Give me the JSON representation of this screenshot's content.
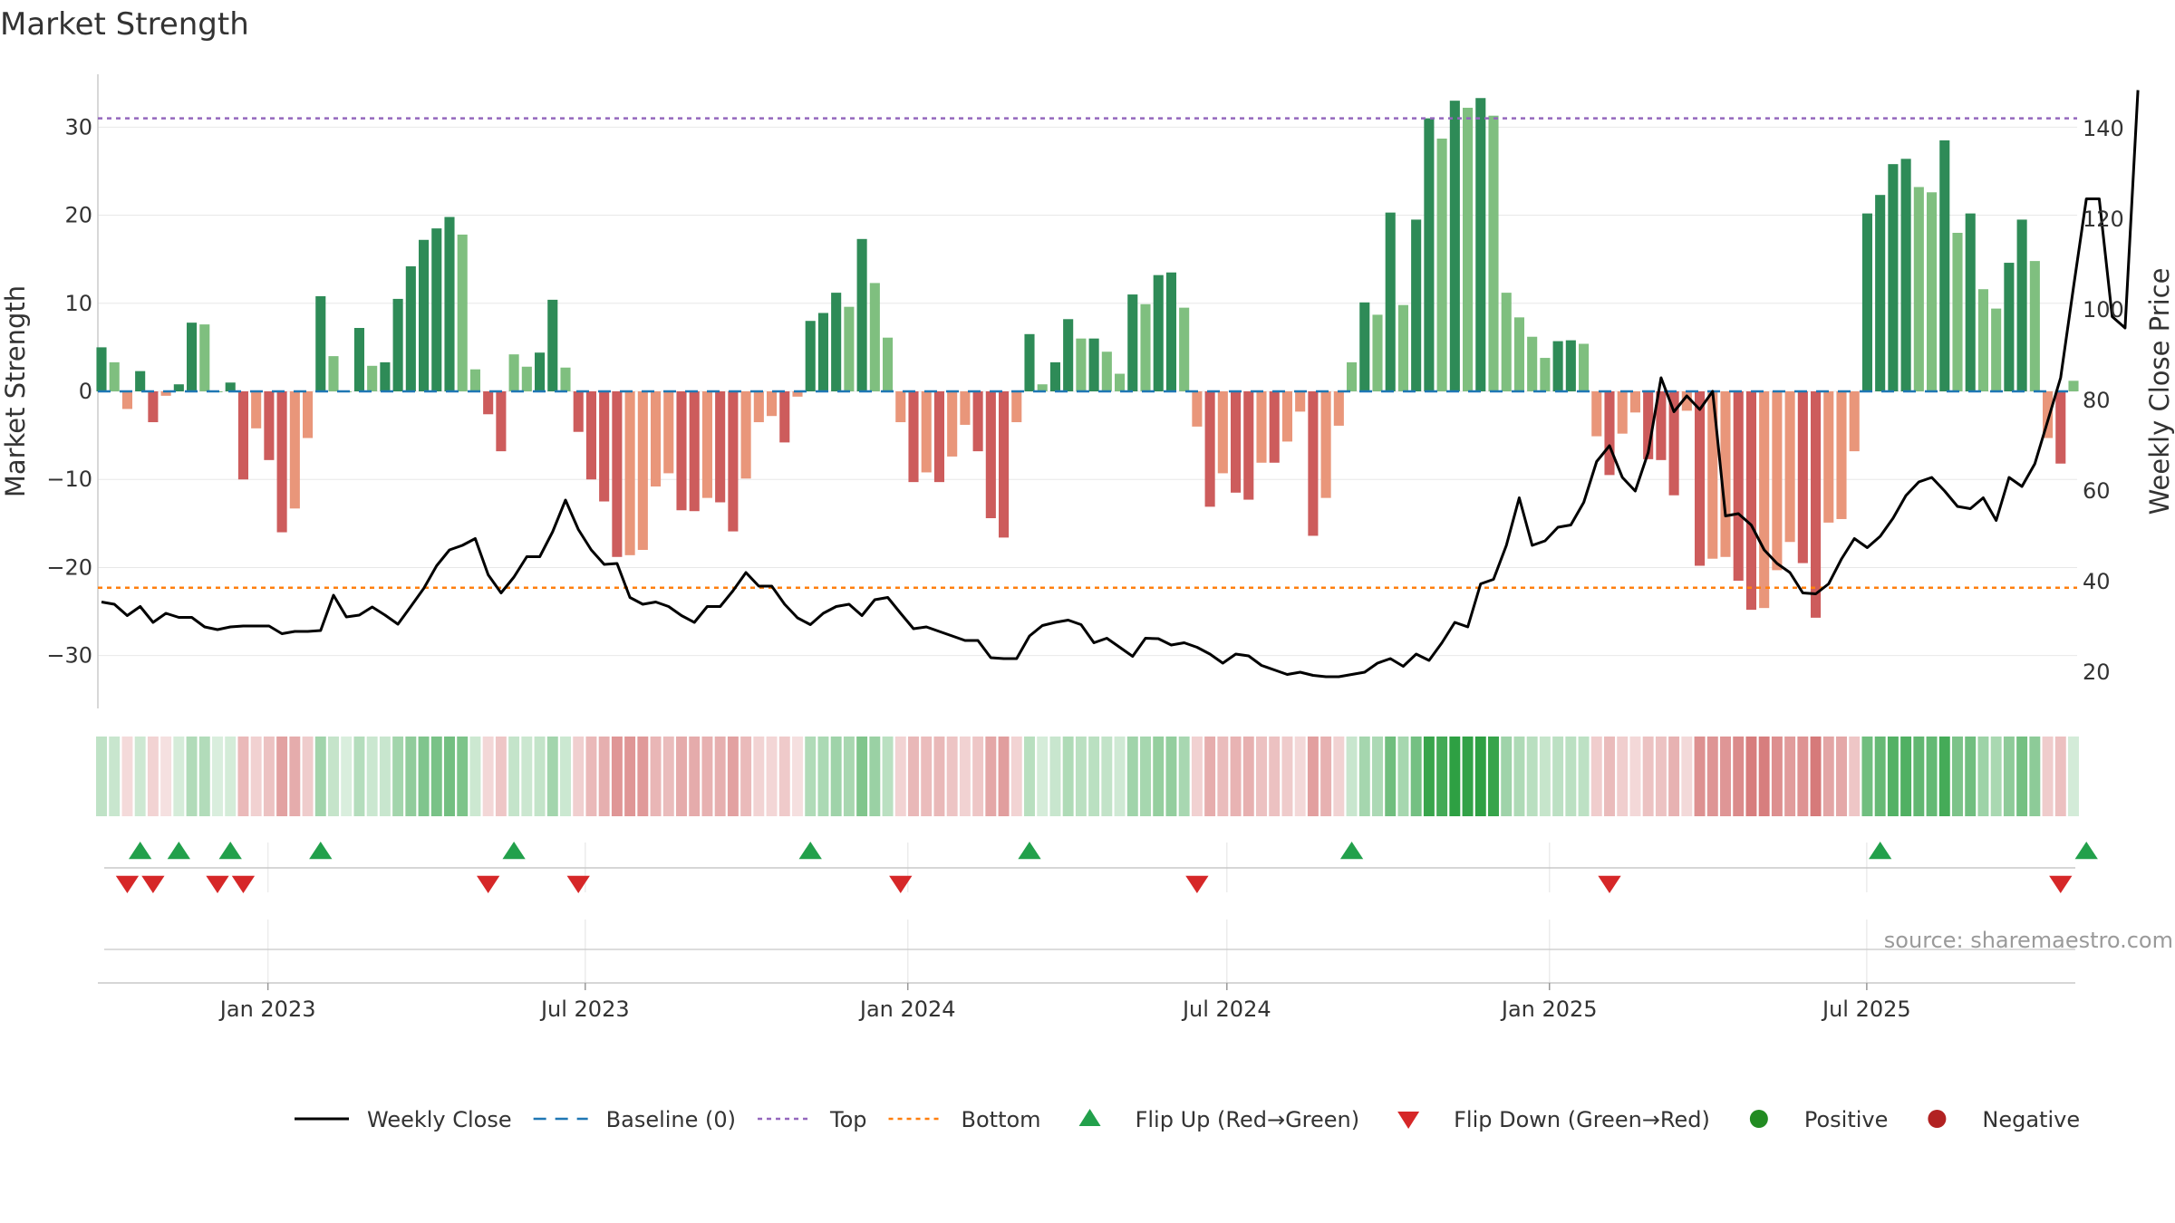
{
  "chart_data": {
    "type": "bar",
    "title": "Market Strength",
    "ylabel_left": "Market Strength",
    "ylabel_right": "Weekly Close Price",
    "ylim_left": [
      -36,
      36
    ],
    "ylim_right": [
      12,
      152
    ],
    "yticks_left": [
      30,
      20,
      10,
      0,
      -10,
      -20,
      -30
    ],
    "ytick_labels_left": [
      "30",
      "20",
      "10",
      "0",
      "−10",
      "−20",
      "−30"
    ],
    "yticks_right": [
      140,
      120,
      100,
      80,
      60,
      40,
      20
    ],
    "ytick_labels_right": [
      "140",
      "120",
      "100",
      "80",
      "60",
      "40",
      "20"
    ],
    "top_level": 31,
    "bottom_level": -22.3,
    "x_start": "2022-09-26",
    "x_end": "2025-10-29",
    "x_ticks": [
      {
        "date": "2023-01-01",
        "label": "Jan 2023"
      },
      {
        "date": "2023-07-01",
        "label": "Jul 2023"
      },
      {
        "date": "2024-01-01",
        "label": "Jan 2024"
      },
      {
        "date": "2024-07-01",
        "label": "Jul 2024"
      },
      {
        "date": "2025-01-01",
        "label": "Jan 2025"
      },
      {
        "date": "2025-07-01",
        "label": "Jul 2025"
      }
    ],
    "strength": [
      5,
      3.3,
      -2,
      2.3,
      -3.5,
      -0.5,
      0.8,
      7.8,
      7.6,
      0,
      1,
      -10,
      -4.2,
      -7.8,
      -16,
      -13.3,
      -5.3,
      10.8,
      4,
      0,
      7.2,
      2.9,
      3.3,
      10.5,
      14.2,
      17.2,
      18.5,
      19.8,
      17.8,
      2.5,
      -2.6,
      -6.8,
      4.2,
      2.8,
      4.4,
      10.4,
      2.7,
      -4.6,
      -10,
      -12.5,
      -18.8,
      -18.6,
      -18,
      -10.8,
      -9.3,
      -13.5,
      -13.6,
      -12.1,
      -12.6,
      -15.9,
      -9.9,
      -3.5,
      -2.8,
      -5.8,
      -0.6,
      8,
      8.9,
      11.2,
      9.6,
      17.3,
      12.3,
      6.1,
      -3.5,
      -10.3,
      -9.2,
      -10.3,
      -7.4,
      -3.8,
      -6.8,
      -14.4,
      -16.6,
      -3.5,
      6.5,
      0.8,
      3.3,
      8.2,
      6,
      6,
      4.5,
      2,
      11,
      9.9,
      13.2,
      13.5,
      9.5,
      -4,
      -13.1,
      -9.3,
      -11.5,
      -12.3,
      -8.1,
      -8.1,
      -5.7,
      -2.3,
      -16.4,
      -12.1,
      -3.9,
      3.3,
      10.1,
      8.7,
      20.3,
      9.8,
      19.5,
      31,
      28.7,
      33,
      32.2,
      33.3,
      31.3,
      11.2,
      8.4,
      6.2,
      3.8,
      5.7,
      5.8,
      5.4,
      -5.1,
      -9.5,
      -4.8,
      -2.4,
      -7.7,
      -7.8,
      -11.8,
      -2.2,
      -19.8,
      -19,
      -18.8,
      -21.5,
      -24.8,
      -24.6,
      -20.3,
      -17.1,
      -19.5,
      -25.7,
      -14.9,
      -14.5,
      -6.8,
      20.2,
      22.3,
      25.8,
      26.4,
      23.2,
      22.6,
      28.5,
      18,
      20.2,
      11.6,
      9.4,
      14.6,
      19.5,
      14.8,
      -5.3,
      -8.2,
      1.2
    ],
    "weekly_close": [
      35.5,
      35,
      32.5,
      34.5,
      31,
      33,
      32.1,
      32.1,
      30,
      29.4,
      30,
      30.2,
      30.2,
      30.2,
      28.5,
      29,
      29,
      29.2,
      37,
      32.2,
      32.6,
      34.4,
      32.6,
      30.6,
      34.5,
      38.5,
      43.5,
      47,
      48,
      49.5,
      41.5,
      37.5,
      41,
      45.5,
      45.5,
      51,
      58,
      51.5,
      47,
      43.8,
      44,
      36.5,
      35,
      35.5,
      34.5,
      32.5,
      31,
      34.5,
      34.5,
      38,
      42,
      39,
      39,
      35,
      32,
      30.5,
      33,
      34.5,
      35,
      32.5,
      36,
      36.5,
      33,
      29.6,
      30,
      29,
      28,
      27,
      27,
      23.2,
      23,
      23,
      28,
      30.3,
      31,
      31.5,
      30.5,
      26.5,
      27.5,
      25.5,
      23.5,
      27.5,
      27.4,
      26,
      26.5,
      25.5,
      24,
      22,
      24,
      23.6,
      21.5,
      20.5,
      19.5,
      20,
      19.3,
      19,
      19,
      19.5,
      20,
      22,
      23,
      21.3,
      24,
      22.6,
      26.5,
      31,
      30,
      39.5,
      40.5,
      48,
      58.5,
      48,
      49,
      52,
      52.5,
      57.5,
      66.5,
      70,
      63,
      60,
      68.5,
      85,
      77.5,
      81,
      78,
      82,
      54.5,
      55,
      52.5,
      47,
      44,
      42,
      37.5,
      37.3,
      39.5,
      45,
      49.5,
      47.5,
      50,
      54,
      59,
      62,
      63,
      60,
      56.6,
      56.1,
      58.5,
      53.5,
      63,
      61,
      66,
      75.5,
      85,
      105,
      124.5,
      124.5,
      98.5,
      96,
      148.5
    ],
    "flip_up_indices": [
      3,
      6,
      10,
      17,
      32,
      55,
      72,
      97,
      138,
      154
    ],
    "flip_down_indices": [
      2,
      4,
      9,
      11,
      30,
      37,
      62,
      85,
      117,
      152
    ],
    "baseline": 0,
    "legend": [
      {
        "key": "weekly_close",
        "label": "Weekly Close"
      },
      {
        "key": "baseline",
        "label": "Baseline (0)"
      },
      {
        "key": "top",
        "label": "Top"
      },
      {
        "key": "bottom",
        "label": "Bottom"
      },
      {
        "key": "flip_up",
        "label": "Flip Up (Red→Green)"
      },
      {
        "key": "flip_down",
        "label": "Flip Down (Green→Red)"
      },
      {
        "key": "positive",
        "label": "Positive"
      },
      {
        "key": "negative",
        "label": "Negative"
      }
    ],
    "source": "source: sharemaestro.com",
    "colors": {
      "pos_dark": "#2e8b57",
      "pos_light": "#7fbf7f",
      "neg_dark": "#cd5c5c",
      "neg_light": "#e9967a",
      "close": "#000000",
      "baseline": "#1f77b4",
      "top": "#9467bd",
      "bottom": "#ff7f0e",
      "flip_up": "#22a04b",
      "flip_down": "#d62728",
      "positive": "#228b22",
      "negative": "#b22222",
      "grid": "#e8e8e8"
    }
  }
}
